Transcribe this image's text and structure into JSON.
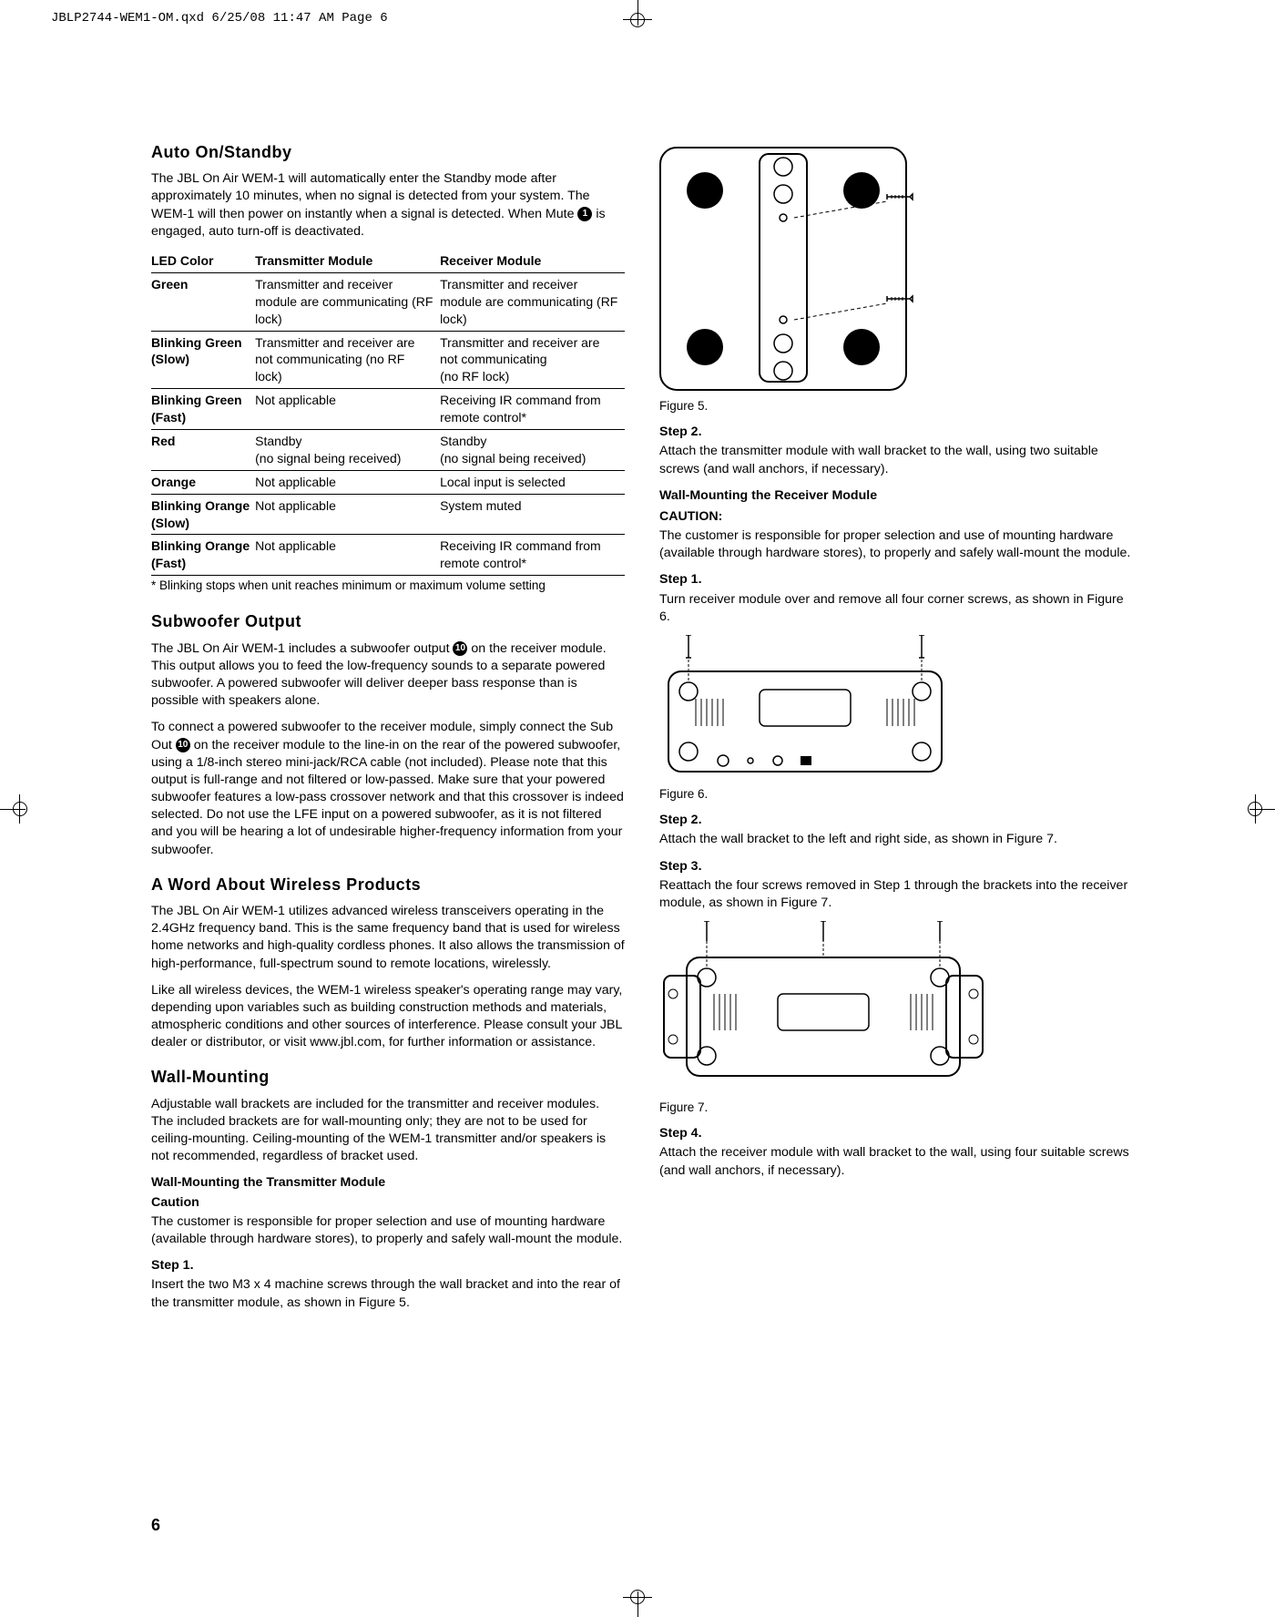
{
  "slug": "JBLP2744-WEM1-OM.qxd  6/25/08  11:47 AM  Page 6",
  "pageNumber": "6",
  "left": {
    "h_auto": "Auto On/Standby",
    "auto_p": "The JBL On Air WEM-1 will automatically enter the Standby mode after approximately 10 minutes, when no signal is detected from your system. The WEM-1 will then power on instantly when a signal is detected. When Mute ",
    "auto_p_tail": " is engaged, auto turn-off is deactivated.",
    "mute_num": "1",
    "table": {
      "h1": "LED Color",
      "h2": "Transmitter Module",
      "h3": "Receiver Module",
      "rows": [
        [
          "Green",
          "Transmitter and receiver module are communicating (RF lock)",
          "Transmitter and receiver module are communicating (RF lock)"
        ],
        [
          "Blinking Green\n(Slow)",
          "Transmitter and receiver are not communicating (no RF lock)",
          "Transmitter and receiver are not communicating\n(no RF lock)"
        ],
        [
          "Blinking Green\n(Fast)",
          "Not applicable",
          "Receiving IR command from remote control*"
        ],
        [
          "Red",
          "Standby\n(no signal being received)",
          "Standby\n(no signal being received)"
        ],
        [
          "Orange",
          "Not applicable",
          "Local input is selected"
        ],
        [
          "Blinking Orange\n(Slow)",
          "Not applicable",
          "System muted"
        ],
        [
          "Blinking Orange\n(Fast)",
          "Not applicable",
          "Receiving IR command from remote control*"
        ]
      ],
      "footnote": "* Blinking stops when unit reaches minimum or maximum volume setting"
    },
    "h_sub": "Subwoofer Output",
    "sub_p1a": "The JBL On Air WEM-1 includes a subwoofer output ",
    "sub_num": "10",
    "sub_p1b": " on the receiver module. This output allows you to feed the low-frequency sounds to a separate powered subwoofer. A powered subwoofer will deliver deeper bass response than is possible with speakers alone.",
    "sub_p2a": "To connect a powered subwoofer to the receiver module, simply connect the Sub Out ",
    "sub_p2b": " on the receiver module to the line-in on the rear of the powered subwoofer, using a 1/8-inch stereo mini-jack/RCA cable (not included). Please note that this output is full-range and not filtered or low-passed. Make sure that your powered subwoofer features a low-pass crossover network and that this crossover is indeed selected. Do not use the LFE input on a powered subwoofer, as it is not filtered and you will be hearing a lot of undesirable higher-frequency information from your subwoofer.",
    "h_wireless": "A Word About Wireless Products",
    "wireless_p1": "The JBL On Air WEM-1 utilizes advanced wireless transceivers operating in the 2.4GHz frequency band. This is the same frequency band that is used for wireless home networks and high-quality cordless phones. It also allows the transmission of high-performance, full-spectrum sound to remote locations, wirelessly.",
    "wireless_p2": "Like all wireless devices, the WEM-1 wireless speaker's operating range may vary, depending upon variables such as building construction methods and materials, atmospheric conditions and other sources of interference. Please consult your JBL dealer or distributor, or visit www.jbl.com, for further information or assistance.",
    "h_wall": "Wall-Mounting",
    "wall_p": "Adjustable wall brackets are included for the transmitter and receiver modules. The included brackets are for wall-mounting only; they are not to be used for ceiling-mounting. Ceiling-mounting of the WEM-1 transmitter and/or speakers is not recommended, regardless of bracket used.",
    "wall_tx_h": "Wall-Mounting the Transmitter Module",
    "caution_h": "Caution",
    "caution_p": "The customer is responsible for proper selection and use of mounting hardware (available through hardware stores), to properly and safely wall-mount the module.",
    "step1_h": "Step 1.",
    "step1_p": "Insert the two M3 x 4 machine screws through the wall bracket and into the rear of the transmitter module, as shown in Figure 5."
  },
  "right": {
    "fig5": "Figure 5.",
    "step2_h": "Step 2.",
    "step2_p": "Attach the transmitter module with wall bracket to the wall, using two suitable screws (and wall anchors, if necessary).",
    "rx_h": "Wall-Mounting the Receiver Module",
    "caution_h": "CAUTION:",
    "caution_p": "The customer is responsible for proper selection and use of mounting hardware (available through hardware stores), to properly and safely wall-mount the module.",
    "step1_h": "Step 1.",
    "step1_p": "Turn receiver module over and remove all four corner screws, as shown in Figure 6.",
    "fig6": "Figure 6.",
    "r_step2_h": "Step 2.",
    "r_step2_p": "Attach the wall bracket to the left and right side, as shown in Figure 7.",
    "step3_h": "Step 3.",
    "step3_p": "Reattach the four screws removed in Step 1 through the brackets into the receiver module, as shown in Figure 7.",
    "fig7": "Figure 7.",
    "step4_h": "Step 4.",
    "step4_p": "Attach the receiver module with wall bracket to the wall, using four suitable screws (and wall anchors, if necessary)."
  }
}
